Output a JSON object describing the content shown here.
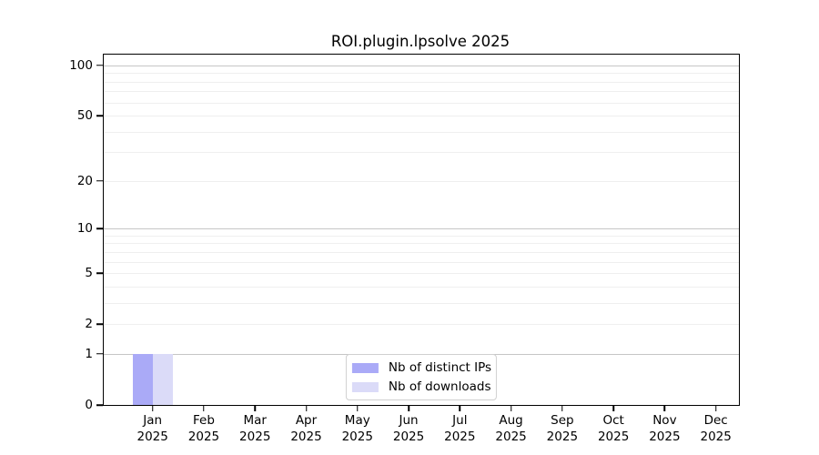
{
  "figure": {
    "background": "#ffffff"
  },
  "chart_data": {
    "type": "bar",
    "title": "ROI.plugin.lpsolve 2025",
    "categories": [
      "Jan",
      "Feb",
      "Mar",
      "Apr",
      "May",
      "Jun",
      "Jul",
      "Aug",
      "Sep",
      "Oct",
      "Nov",
      "Dec"
    ],
    "year_label": "2025",
    "series": [
      {
        "name": "Nb of distinct IPs",
        "color": "#aaaaf7",
        "values": [
          1,
          0,
          0,
          0,
          0,
          0,
          0,
          0,
          0,
          0,
          0,
          0
        ]
      },
      {
        "name": "Nb of downloads",
        "color": "#dbdbf8",
        "values": [
          1,
          0,
          0,
          0,
          0,
          0,
          0,
          0,
          0,
          0,
          0,
          0
        ]
      }
    ],
    "yscale": "log1p",
    "ylim": [
      0,
      116
    ],
    "yticks": [
      0,
      1,
      2,
      5,
      10,
      20,
      50,
      100
    ],
    "major_gridlines": [
      1,
      10,
      100
    ],
    "minor_gridlines": [
      2,
      3,
      4,
      5,
      6,
      7,
      8,
      9,
      20,
      30,
      40,
      50,
      60,
      70,
      80,
      90
    ],
    "grid": true,
    "legend_position": "bottom-center",
    "colors": {
      "axis": "#000000",
      "text": "#000000",
      "grid_minor": "#efefef",
      "grid_major": "#c6c6c6",
      "legend_border": "#d0d0d0",
      "plot_background": "#ffffff"
    }
  }
}
